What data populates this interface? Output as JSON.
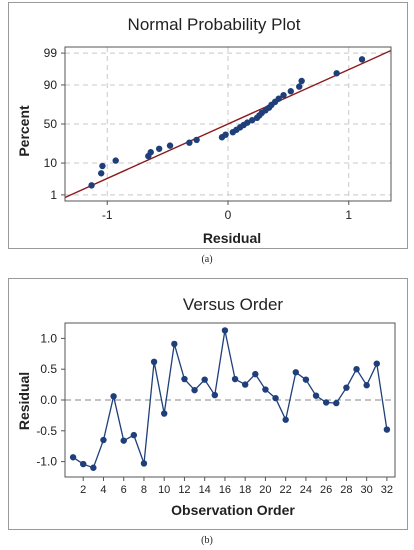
{
  "chart_data": [
    {
      "type": "scatter",
      "title": "Normal Probability Plot",
      "xlabel": "Residual",
      "ylabel": "Percent",
      "caption": "(a)",
      "xlim": [
        -1.35,
        1.35
      ],
      "x_ticks": [
        -1,
        0,
        1
      ],
      "y_ticks": [
        1,
        10,
        50,
        90,
        99
      ],
      "y_scale": "normal-probability",
      "grid": true,
      "points": {
        "x": [
          -1.13,
          -1.05,
          -1.04,
          -0.93,
          -0.66,
          -0.64,
          -0.57,
          -0.48,
          -0.32,
          -0.26,
          -0.05,
          -0.02,
          0.04,
          0.07,
          0.1,
          0.13,
          0.16,
          0.2,
          0.24,
          0.26,
          0.28,
          0.31,
          0.34,
          0.36,
          0.39,
          0.42,
          0.46,
          0.52,
          0.59,
          0.61,
          0.9,
          1.11
        ],
        "y": [
          2.2,
          5.3,
          8.4,
          11.5,
          14.6,
          17.7,
          20.8,
          23.9,
          27.0,
          30.1,
          33.2,
          36.3,
          39.4,
          42.5,
          45.6,
          48.7,
          51.8,
          54.9,
          58.0,
          61.1,
          64.2,
          67.3,
          70.4,
          73.5,
          76.6,
          79.7,
          82.8,
          85.9,
          89.0,
          92.1,
          95.2,
          98.3
        ]
      },
      "fit_line": {
        "x": [
          -1.35,
          1.35
        ],
        "mean": 0.0,
        "sd": 0.56
      },
      "colors": {
        "points": "#1f3f7a",
        "line": "#8b1a1a",
        "grid": "#c8c8c8",
        "frame": "#555555"
      }
    },
    {
      "type": "line",
      "title": "Versus Order",
      "xlabel": "Observation Order",
      "ylabel": "Residual",
      "caption": "(b)",
      "xlim": [
        0.2,
        32.8
      ],
      "ylim": [
        -1.25,
        1.25
      ],
      "x_ticks": [
        2,
        4,
        6,
        8,
        10,
        12,
        14,
        16,
        18,
        20,
        22,
        24,
        26,
        28,
        30,
        32
      ],
      "y_ticks": [
        -1.0,
        -0.5,
        0.0,
        0.5,
        1.0
      ],
      "y_tick_labels": [
        "-1.0",
        "-0.5",
        "0.0",
        "0.5",
        "1.0"
      ],
      "reference_line": 0.0,
      "x": [
        1,
        2,
        3,
        4,
        5,
        6,
        7,
        8,
        9,
        10,
        11,
        12,
        13,
        14,
        15,
        16,
        17,
        18,
        19,
        20,
        21,
        22,
        23,
        24,
        25,
        26,
        27,
        28,
        29,
        30,
        31,
        32
      ],
      "y": [
        -0.93,
        -1.04,
        -1.1,
        -0.65,
        0.06,
        -0.66,
        -0.57,
        -1.03,
        0.62,
        -0.22,
        0.91,
        0.34,
        0.16,
        0.33,
        0.08,
        1.13,
        0.34,
        0.25,
        0.42,
        0.17,
        0.03,
        -0.32,
        0.45,
        0.33,
        0.07,
        -0.04,
        -0.05,
        0.2,
        0.5,
        0.24,
        0.59,
        -0.48
      ],
      "colors": {
        "points": "#1f3f7a",
        "line": "#1f3f7a",
        "reference": "#888888",
        "frame": "#555555"
      }
    }
  ]
}
